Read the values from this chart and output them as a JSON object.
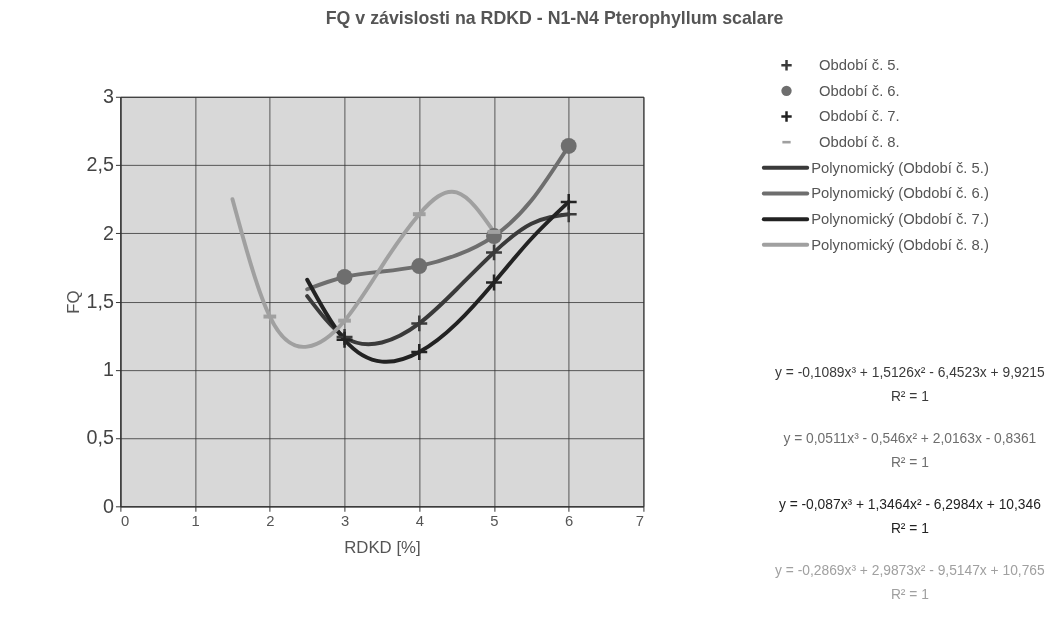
{
  "chart_data": {
    "type": "scatter",
    "title": "FQ v závislosti na RDKD - N1-N4 Pterophyllum scalare",
    "xlabel": "RDKD [%]",
    "ylabel": "FQ",
    "xlim": [
      0,
      7
    ],
    "ylim": [
      0,
      3
    ],
    "xticks": [
      0,
      1,
      2,
      3,
      4,
      5,
      6,
      7
    ],
    "yticks": [
      0,
      {
        "value": 0.5,
        "label": "0,5"
      },
      1,
      {
        "value": 1.5,
        "label": "1,5"
      },
      2,
      {
        "value": 2.5,
        "label": "2,5"
      },
      3
    ],
    "grid": true,
    "legend": "right",
    "series": [
      {
        "name": "Období č. 5.",
        "marker": "cross",
        "color": "#3a3a3a",
        "x": [
          3,
          4,
          5,
          6
        ],
        "values": [
          1.24,
          1.34,
          1.86,
          2.14
        ]
      },
      {
        "name": "Období č. 6.",
        "marker": "circle",
        "color": "#6e6e6e",
        "x": [
          3,
          4,
          5,
          6
        ],
        "values": [
          1.68,
          1.76,
          1.98,
          2.64
        ]
      },
      {
        "name": "Období č. 7.",
        "marker": "cross",
        "color": "#222222",
        "x": [
          3,
          4,
          5,
          6
        ],
        "values": [
          1.22,
          1.13,
          1.64,
          2.23
        ]
      },
      {
        "name": "Období č. 8.",
        "marker": "square",
        "color": "#a0a0a0",
        "x": [
          2,
          3,
          4,
          5
        ],
        "values": [
          1.39,
          1.36,
          2.14,
          2.01
        ]
      },
      {
        "name": "Polynomický (Období č. 5.)",
        "type": "line",
        "marker": "none",
        "color": "#3a3a3a",
        "x": [
          2.5,
          3,
          3.5,
          4,
          4.5,
          5,
          5.5,
          6
        ],
        "values": [
          1.54,
          1.24,
          1.2,
          1.34,
          1.59,
          1.86,
          2.07,
          2.14
        ]
      },
      {
        "name": "Polynomický (Období č. 6.)",
        "type": "line",
        "marker": "none",
        "color": "#6e6e6e",
        "x": [
          2.5,
          3,
          3.5,
          4,
          4.5,
          5,
          5.5,
          6
        ],
        "values": [
          1.59,
          1.68,
          1.72,
          1.76,
          1.84,
          1.98,
          2.24,
          2.64
        ]
      },
      {
        "name": "Polynomický (Období č. 7.)",
        "type": "line",
        "marker": "none",
        "color": "#222222",
        "x": [
          2.5,
          3,
          3.5,
          4,
          4.5,
          5,
          5.5,
          6
        ],
        "values": [
          1.66,
          1.22,
          1.06,
          1.13,
          1.34,
          1.64,
          1.96,
          2.23
        ]
      },
      {
        "name": "Polynomický (Období č. 8.)",
        "type": "line",
        "marker": "none",
        "color": "#a0a0a0",
        "x": [
          1.5,
          2,
          2.5,
          3,
          3.5,
          4,
          4.5,
          5
        ],
        "values": [
          2.25,
          1.39,
          1.17,
          1.36,
          1.76,
          2.14,
          2.3,
          2.01
        ]
      }
    ],
    "annotations": [
      "y = -0,1089x³ + 1,5126x² - 6,4523x + 9,9215",
      "R² = 1",
      "y = 0,0511x³ - 0,546x² + 2,0163x - 0,8361",
      "R² = 1",
      "y = -0,087x³ + 1,3464x² - 6,2984x + 10,346",
      "R² = 1",
      "y = -0,2869x³ + 2,9873x² - 9,5147x + 10,765",
      "R² = 1"
    ]
  }
}
